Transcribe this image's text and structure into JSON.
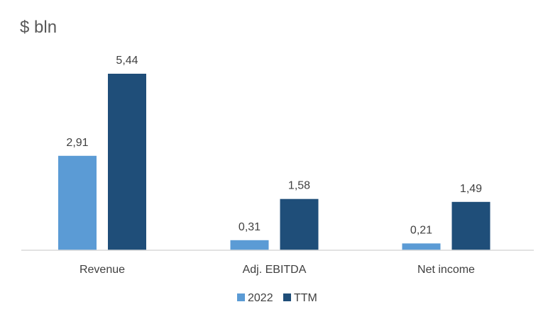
{
  "chart_data": {
    "type": "bar",
    "title": "$ bln",
    "categories": [
      "Revenue",
      "Adj. EBITDA",
      "Net income"
    ],
    "series": [
      {
        "name": "2022",
        "values": [
          2.91,
          0.31,
          0.21
        ],
        "labels": [
          "2,91",
          "0,31",
          "0,21"
        ],
        "color": "#5b9bd5"
      },
      {
        "name": "TTM",
        "values": [
          5.44,
          1.58,
          1.49
        ],
        "labels": [
          "5,44",
          "1,58",
          "1,49"
        ],
        "color": "#1f4e79"
      }
    ],
    "ylim": [
      0,
      6
    ],
    "grid": false,
    "legend": "bottom"
  }
}
